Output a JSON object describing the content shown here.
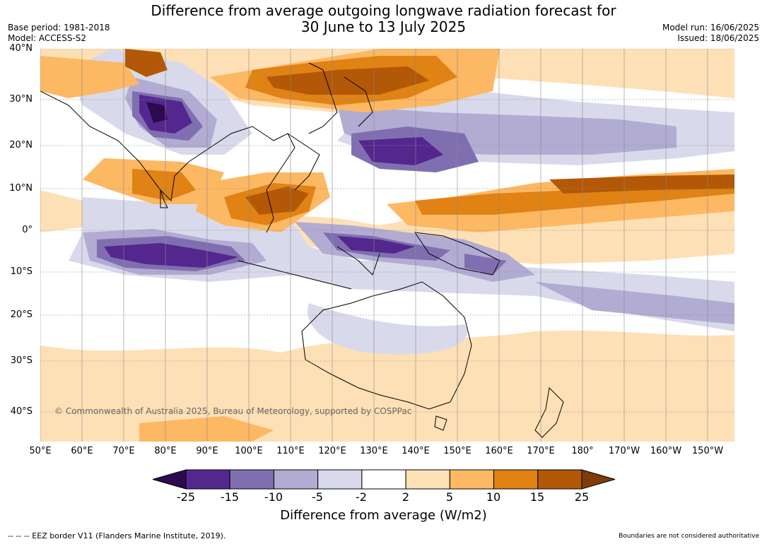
{
  "title_line1": "Difference from average outgoing longwave radiation forecast for",
  "title_line2": "30 June to 13 July 2025",
  "base_period": "Base period: 1981-2018",
  "model": "Model: ACCESS-S2",
  "model_run": "Model run: 16/06/2025",
  "issued": "Issued: 18/06/2025",
  "copyright": "© Commonwealth of Australia 2025, Bureau of Meteorology, supported by COSPPac",
  "lat_labels": [
    "40°N",
    "30°N",
    "20°N",
    "10°N",
    "0°",
    "10°S",
    "20°S",
    "30°S",
    "40°S"
  ],
  "lon_labels": [
    "50°E",
    "60°E",
    "70°E",
    "80°E",
    "90°E",
    "100°E",
    "110°E",
    "120°E",
    "130°E",
    "140°E",
    "150°E",
    "160°E",
    "170°E",
    "180°",
    "170°W",
    "160°W",
    "150°W"
  ],
  "colorbar": {
    "ticks": [
      "-25",
      "-15",
      "-10",
      "-5",
      "-2",
      "2",
      "5",
      "10",
      "15",
      "25"
    ],
    "colors": [
      "#2d0a4e",
      "#54278f",
      "#806fb0",
      "#b2abd2",
      "#d8daeb",
      "#ffffff",
      "#fee0b6",
      "#fdb863",
      "#e08214",
      "#b35806",
      "#7f3b08"
    ],
    "label": "Difference from average (W/m2)"
  },
  "footer_left": "-- -- -- EEZ border V11 (Flanders Marine Institute, 2019).",
  "footer_right": "Boundaries are not considered authoritative"
}
